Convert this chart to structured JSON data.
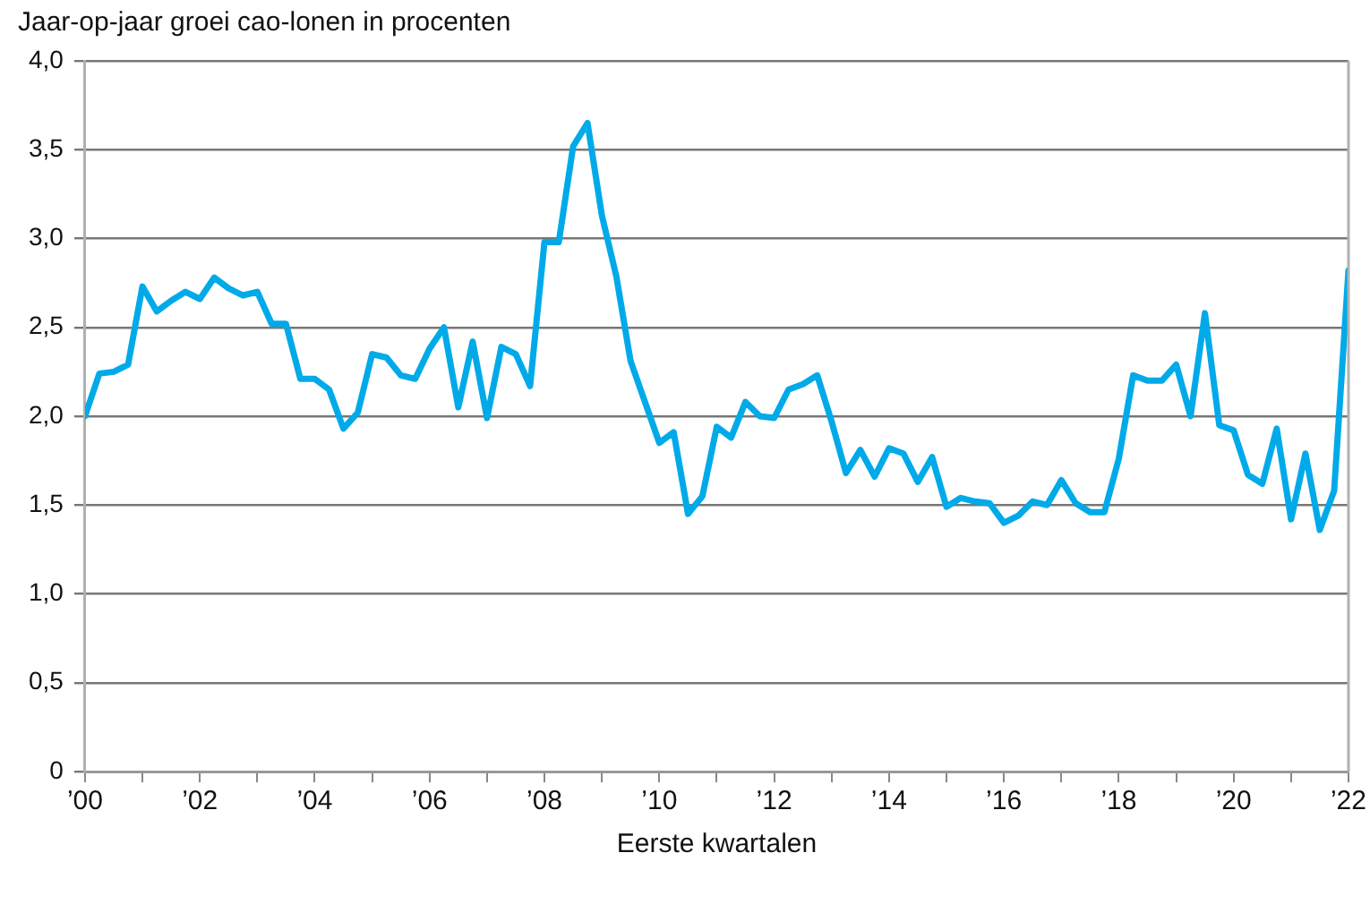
{
  "chart_data": {
    "type": "line",
    "title": "Jaar-op-jaar groei cao-lonen in procenten",
    "xlabel": "Eerste kwartalen",
    "x": [
      2000,
      2000.25,
      2000.5,
      2000.75,
      2001,
      2001.25,
      2001.5,
      2001.75,
      2002,
      2002.25,
      2002.5,
      2002.75,
      2003,
      2003.25,
      2003.5,
      2003.75,
      2004,
      2004.25,
      2004.5,
      2004.75,
      2005,
      2005.25,
      2005.5,
      2005.75,
      2006,
      2006.25,
      2006.5,
      2006.75,
      2007,
      2007.25,
      2007.5,
      2007.75,
      2008,
      2008.25,
      2008.5,
      2008.75,
      2009,
      2009.25,
      2009.5,
      2009.75,
      2010,
      2010.25,
      2010.5,
      2010.75,
      2011,
      2011.25,
      2011.5,
      2011.75,
      2012,
      2012.25,
      2012.5,
      2012.75,
      2013,
      2013.25,
      2013.5,
      2013.75,
      2014,
      2014.25,
      2014.5,
      2014.75,
      2015,
      2015.25,
      2015.5,
      2015.75,
      2016,
      2016.25,
      2016.5,
      2016.75,
      2017,
      2017.25,
      2017.5,
      2017.75,
      2018,
      2018.25,
      2018.5,
      2018.75,
      2019,
      2019.25,
      2019.5,
      2019.75,
      2020,
      2020.25,
      2020.5,
      2020.75,
      2021,
      2021.25,
      2021.5,
      2021.75,
      2022
    ],
    "series": [
      {
        "color": "#00aae9",
        "values": [
          2.0,
          2.24,
          2.25,
          2.29,
          2.73,
          2.59,
          2.65,
          2.7,
          2.66,
          2.78,
          2.72,
          2.68,
          2.7,
          2.52,
          2.52,
          2.21,
          2.21,
          2.15,
          1.93,
          2.02,
          2.35,
          2.33,
          2.23,
          2.21,
          2.38,
          2.5,
          2.05,
          2.42,
          1.99,
          2.39,
          2.35,
          2.17,
          2.98,
          2.98,
          3.52,
          3.65,
          3.13,
          2.79,
          2.31,
          2.08,
          1.85,
          1.91,
          1.45,
          1.55,
          1.94,
          1.88,
          2.08,
          2.0,
          1.99,
          2.15,
          2.18,
          2.23,
          1.97,
          1.68,
          1.81,
          1.66,
          1.82,
          1.79,
          1.63,
          1.77,
          1.49,
          1.54,
          1.52,
          1.51,
          1.4,
          1.44,
          1.52,
          1.5,
          1.64,
          1.51,
          1.46,
          1.46,
          1.76,
          2.23,
          2.2,
          2.2,
          2.29,
          2.0,
          2.58,
          1.95,
          1.92,
          1.67,
          1.62,
          1.93,
          1.42,
          1.79,
          1.36,
          1.58,
          2.82
        ]
      }
    ],
    "xlim": [
      2000,
      2022
    ],
    "xticks": [
      {
        "value": 2000,
        "label": "’00"
      },
      {
        "value": 2001,
        "label": null
      },
      {
        "value": 2002,
        "label": "’02"
      },
      {
        "value": 2003,
        "label": null
      },
      {
        "value": 2004,
        "label": "’04"
      },
      {
        "value": 2005,
        "label": null
      },
      {
        "value": 2006,
        "label": "’06"
      },
      {
        "value": 2007,
        "label": null
      },
      {
        "value": 2008,
        "label": "’08"
      },
      {
        "value": 2009,
        "label": null
      },
      {
        "value": 2010,
        "label": "’10"
      },
      {
        "value": 2011,
        "label": null
      },
      {
        "value": 2012,
        "label": "’12"
      },
      {
        "value": 2013,
        "label": null
      },
      {
        "value": 2014,
        "label": "’14"
      },
      {
        "value": 2015,
        "label": null
      },
      {
        "value": 2016,
        "label": "’16"
      },
      {
        "value": 2017,
        "label": null
      },
      {
        "value": 2018,
        "label": "’18"
      },
      {
        "value": 2019,
        "label": null
      },
      {
        "value": 2020,
        "label": "’20"
      },
      {
        "value": 2021,
        "label": null
      },
      {
        "value": 2022,
        "label": "’22"
      }
    ],
    "ylim": [
      0,
      4
    ],
    "yticks": [
      0,
      {
        "value": 0.5,
        "label": "0,5"
      },
      {
        "value": 1,
        "label": "1,0"
      },
      {
        "value": 1.5,
        "label": "1,5"
      },
      {
        "value": 2,
        "label": "2,0"
      },
      {
        "value": 2.5,
        "label": "2,5"
      },
      {
        "value": 3,
        "label": "3,0"
      },
      {
        "value": 3.5,
        "label": "3,5"
      },
      {
        "value": 4,
        "label": "4,0"
      }
    ],
    "grid": "y",
    "legend": false,
    "marker": "none",
    "line_style": "solid"
  }
}
